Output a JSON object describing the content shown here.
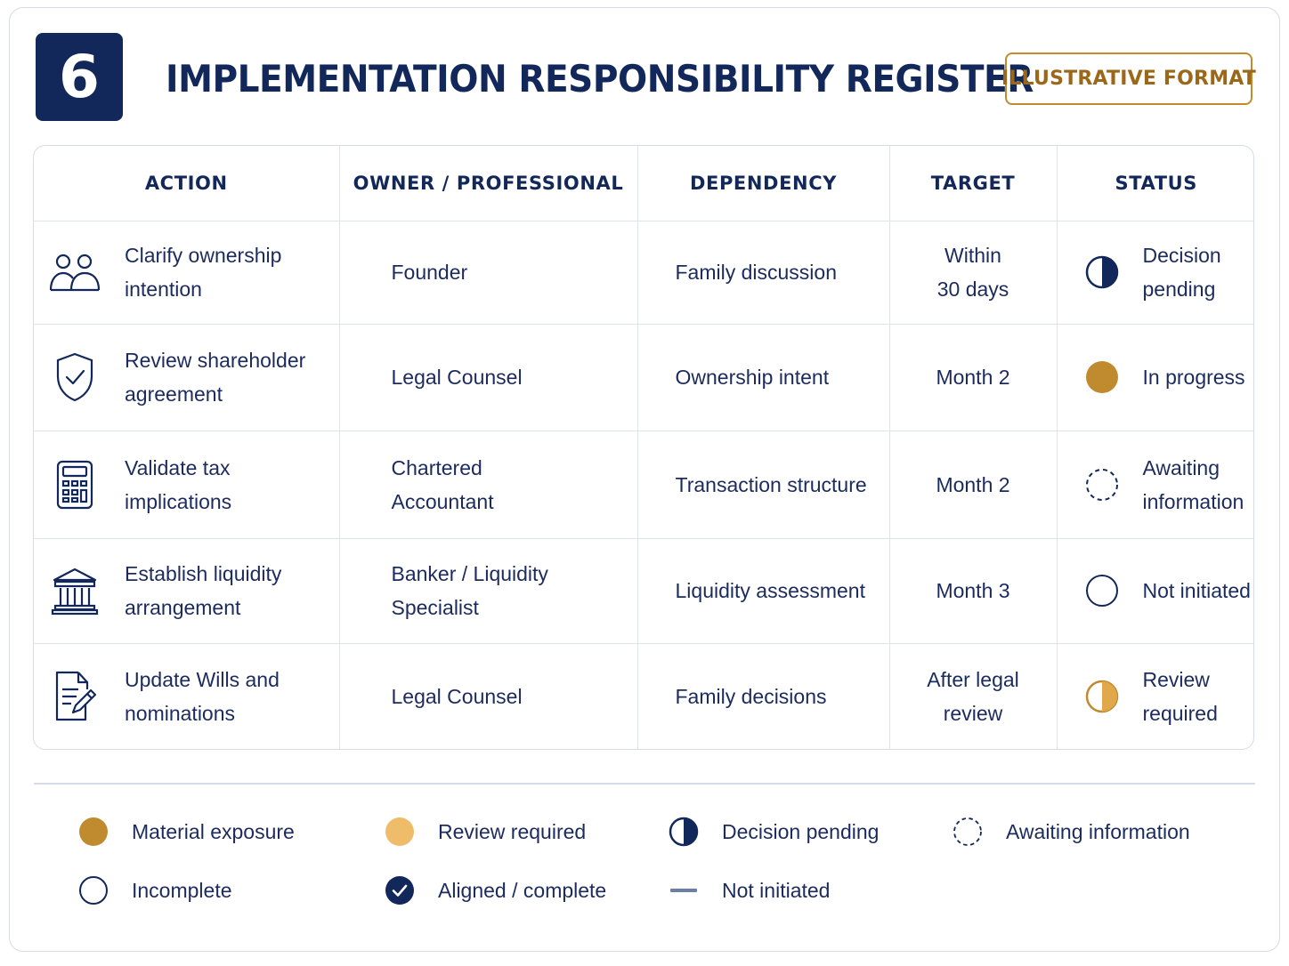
{
  "header": {
    "section_number": "6",
    "title": "IMPLEMENTATION RESPONSIBILITY REGISTER",
    "format_badge": "ILLUSTRATIVE FORMAT"
  },
  "table": {
    "columns": [
      "ACTION",
      "OWNER / PROFESSIONAL",
      "DEPENDENCY",
      "TARGET",
      "STATUS"
    ],
    "rows": [
      {
        "icon": "people-icon",
        "action_line1": "Clarify ownership",
        "action_line2": "intention",
        "owner_line1": "Founder",
        "owner_line2": "",
        "dependency": "Family discussion",
        "target_line1": "Within",
        "target_line2": "30 days",
        "status_icon": "decision-pending-icon",
        "status_line1": "Decision",
        "status_line2": "pending"
      },
      {
        "icon": "shield-check-icon",
        "action_line1": "Review shareholder",
        "action_line2": "agreement",
        "owner_line1": "Legal Counsel",
        "owner_line2": "",
        "dependency": "Ownership intent",
        "target_line1": "Month 2",
        "target_line2": "",
        "status_icon": "material-exposure-icon",
        "status_line1": "In progress",
        "status_line2": ""
      },
      {
        "icon": "calculator-icon",
        "action_line1": "Validate tax",
        "action_line2": "implications",
        "owner_line1": "Chartered",
        "owner_line2": "Accountant",
        "dependency": "Transaction structure",
        "target_line1": "Month 2",
        "target_line2": "",
        "status_icon": "awaiting-information-icon",
        "status_line1": "Awaiting",
        "status_line2": "information"
      },
      {
        "icon": "bank-icon",
        "action_line1": "Establish liquidity",
        "action_line2": "arrangement",
        "owner_line1": "Banker / Liquidity",
        "owner_line2": "Specialist",
        "dependency": "Liquidity assessment",
        "target_line1": "Month 3",
        "target_line2": "",
        "status_icon": "incomplete-icon",
        "status_line1": "Not initiated",
        "status_line2": ""
      },
      {
        "icon": "document-pen-icon",
        "action_line1": "Update Wills and",
        "action_line2": "nominations",
        "owner_line1": "Legal Counsel",
        "owner_line2": "",
        "dependency": "Family decisions",
        "target_line1": "After legal",
        "target_line2": "review",
        "status_icon": "review-half-icon",
        "status_line1": "Review",
        "status_line2": "required"
      }
    ]
  },
  "legend": [
    {
      "icon": "material-exposure-icon",
      "label": "Material exposure"
    },
    {
      "icon": "review-required-icon",
      "label": "Review required"
    },
    {
      "icon": "decision-pending-icon",
      "label": "Decision pending"
    },
    {
      "icon": "awaiting-information-icon",
      "label": "Awaiting information"
    },
    {
      "icon": "incomplete-icon",
      "label": "Incomplete"
    },
    {
      "icon": "aligned-complete-icon",
      "label": "Aligned / complete"
    },
    {
      "icon": "not-initiated-dash-icon",
      "label": "Not initiated"
    }
  ],
  "colors": {
    "navy": "#13285a",
    "gold": "#c08a2e",
    "light_gold": "#efbd6a",
    "border": "#d5dbe7"
  }
}
